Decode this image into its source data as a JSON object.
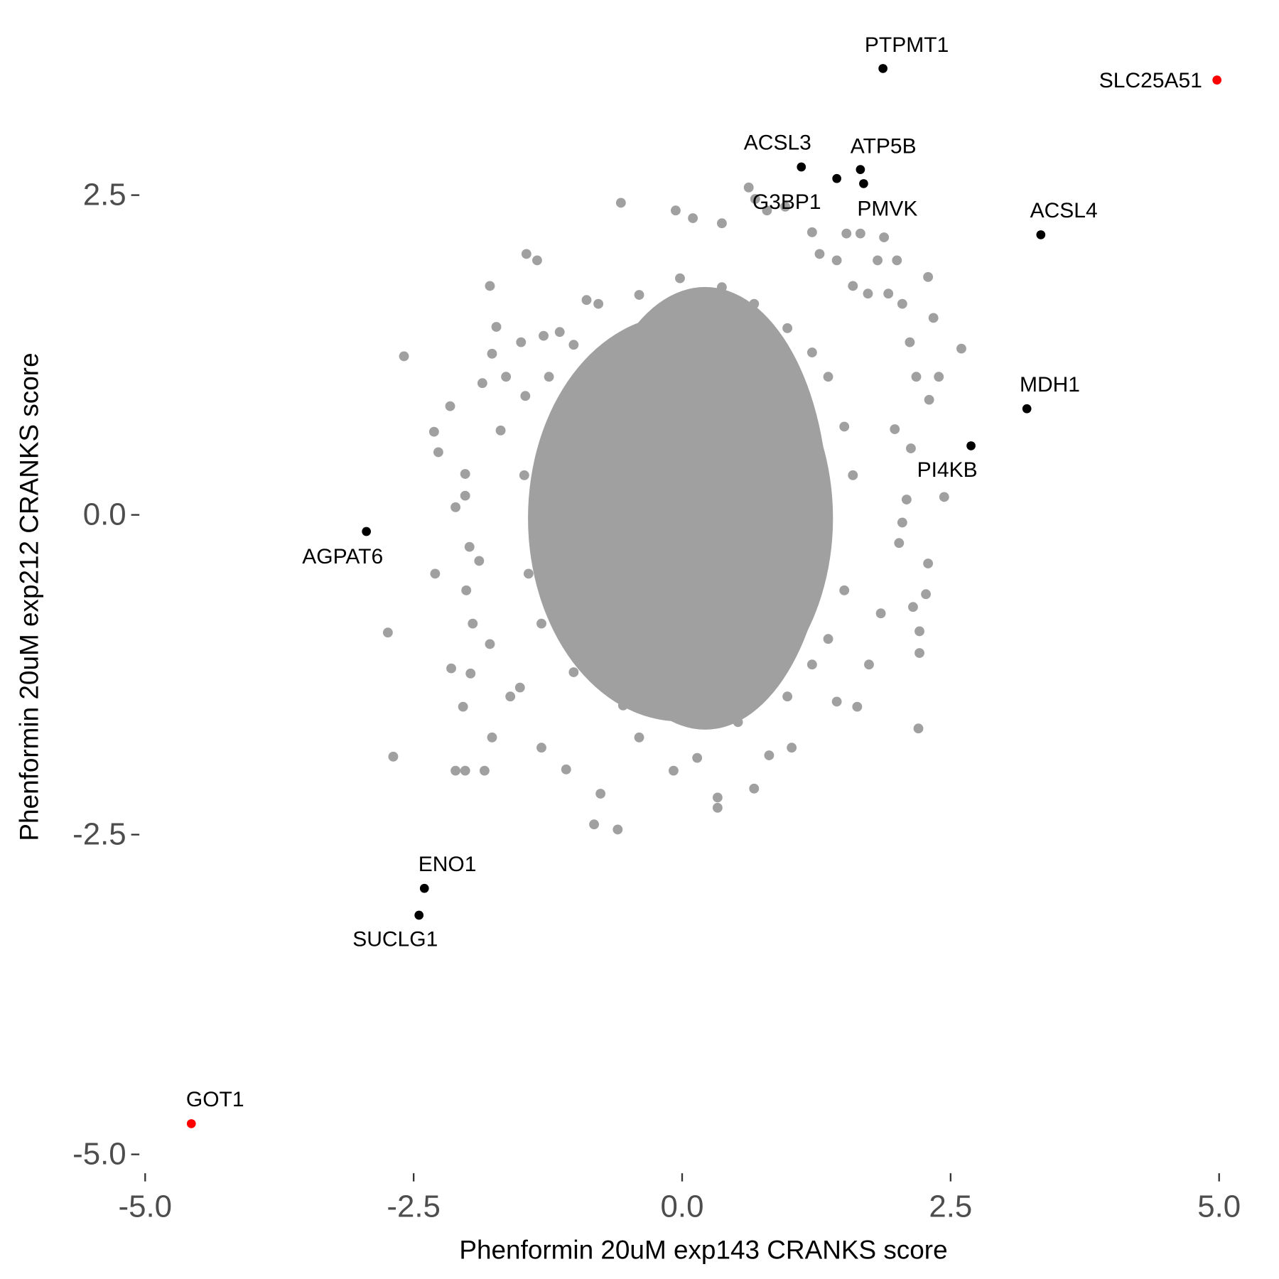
{
  "chart_data": {
    "type": "scatter",
    "x_label": "Phenformin 20uM exp143 CRANKS score",
    "y_label": "Phenformin 20uM exp212 CRANKS score",
    "xlim": [
      -5.05,
      5.05
    ],
    "ylim": [
      -5.1,
      3.6
    ],
    "xticks": [
      {
        "value": -5,
        "label": "-5.0"
      },
      -2.5,
      {
        "value": 0,
        "label": "0.0"
      },
      2.5,
      {
        "value": 5,
        "label": "5.0"
      }
    ],
    "yticks": [
      {
        "value": -5,
        "label": "-5.0"
      },
      -2.5,
      {
        "value": 0,
        "label": "0.0"
      },
      2.5
    ],
    "series": [
      {
        "color": "#a0a0a0",
        "x": [
          -0.57,
          -0.06,
          0.1,
          0.37,
          0.62,
          0.68,
          0.79,
          0.96,
          1.53,
          1.66,
          1.88,
          1.21,
          1.28,
          -1.45,
          -1.35,
          -1.79,
          -2.59,
          -1.73,
          -1.77,
          -2.16,
          -2.31,
          -2.27,
          -2.74,
          -2.69,
          -2.3,
          -2.11,
          -2.02,
          -1.84,
          -2.15,
          -1.97,
          -2.04,
          -1.77,
          -1.31,
          -1.08,
          -0.82,
          -0.6,
          -0.76,
          0.33,
          0.67,
          0.81,
          1.02,
          1.44,
          1.63,
          2.2,
          2.21,
          2.21,
          2.15,
          2.27,
          2.29,
          2.44,
          2.09,
          2.13,
          2.6,
          2.29,
          2.34,
          2.18,
          2.3,
          2.39,
          2.0,
          1.82,
          1.92,
          2.05,
          1.73,
          1.44,
          1.59,
          2.12,
          1.98,
          2.05,
          2.02,
          1.85,
          1.74,
          -0.78,
          -0.89,
          -1.29,
          -1.14,
          -1.5,
          -1.64,
          -1.86,
          -1.46,
          -1.69,
          -2.02,
          -2.02,
          -2.11,
          -1.98,
          -1.89,
          -2.01,
          -1.95,
          -1.79,
          -1.51,
          -1.6,
          -0.4,
          -0.08,
          0.14,
          0.52,
          0.98,
          1.21,
          1.36,
          1.51,
          1.59,
          1.51,
          1.36,
          1.21,
          0.98,
          0.67,
          0.37,
          -0.02,
          -0.4,
          -1.01,
          -1.24,
          -1.47,
          -1.43,
          -1.31,
          -1.01,
          -0.55,
          -0.02,
          1.28,
          1.32,
          0.33
        ],
        "y": [
          2.44,
          2.38,
          2.32,
          2.28,
          2.56,
          2.47,
          2.38,
          2.41,
          2.2,
          2.2,
          2.17,
          2.21,
          2.04,
          2.04,
          1.99,
          1.79,
          1.24,
          1.47,
          1.26,
          0.85,
          0.65,
          0.49,
          -0.92,
          -1.89,
          -0.46,
          -2.0,
          -2.0,
          -2.0,
          -1.2,
          -1.24,
          -1.5,
          -1.74,
          -1.82,
          -1.99,
          -2.42,
          -2.46,
          -2.18,
          -2.29,
          -2.14,
          -1.88,
          -1.82,
          -1.46,
          -1.5,
          -1.67,
          -0.91,
          -1.08,
          -0.72,
          -0.62,
          -0.38,
          0.14,
          0.12,
          0.52,
          1.3,
          1.86,
          1.54,
          1.08,
          0.9,
          1.08,
          1.99,
          1.99,
          1.73,
          1.65,
          1.73,
          1.99,
          1.79,
          1.35,
          0.67,
          -0.06,
          -0.22,
          -0.77,
          -1.17,
          1.65,
          1.68,
          1.4,
          1.43,
          1.35,
          1.08,
          1.03,
          0.93,
          0.66,
          0.32,
          0.15,
          0.06,
          -0.25,
          -0.36,
          -0.59,
          -0.85,
          -1.01,
          -1.35,
          -1.42,
          -1.74,
          -2.0,
          -1.9,
          -1.62,
          -1.42,
          -1.17,
          -0.97,
          -0.59,
          0.31,
          0.69,
          1.08,
          1.27,
          1.46,
          1.65,
          1.78,
          1.85,
          1.72,
          1.33,
          1.08,
          0.31,
          -0.46,
          -0.85,
          -1.23,
          -1.49,
          -1.55,
          -0.33,
          0.18,
          -2.21
        ]
      },
      {
        "color": "#000000",
        "labels": [
          "PTPMT1",
          "ACSL3",
          "G3BP1",
          "ATP5B",
          "PMVK",
          "ACSL4",
          "MDH1",
          "PI4KB",
          "AGPAT6",
          "ENO1",
          "SUCLG1"
        ],
        "x": [
          1.87,
          1.11,
          1.44,
          1.66,
          1.69,
          3.34,
          3.21,
          2.69,
          -2.94,
          -2.4,
          -2.45
        ],
        "y": [
          3.49,
          2.72,
          2.63,
          2.7,
          2.59,
          2.19,
          0.83,
          0.54,
          -0.13,
          -2.92,
          -3.13
        ]
      },
      {
        "color": "#ff0000",
        "labels": [
          "SLC25A51",
          "GOT1"
        ],
        "x": [
          4.98,
          -4.57
        ],
        "y": [
          3.4,
          -4.76
        ]
      }
    ]
  }
}
